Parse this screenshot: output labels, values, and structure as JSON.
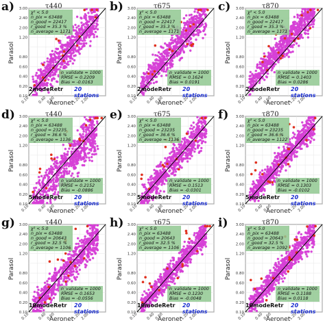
{
  "figure": {
    "ylabel": "Parasol",
    "xlabel": "Aeronet",
    "ticks": [
      "0.10",
      "0.20",
      "0.40",
      "0.60",
      "0.80",
      "1.00",
      "1.20",
      "2.00",
      "2.40",
      "3.00"
    ],
    "y_ticks_shown": [
      "3.00",
      "2.40",
      "2.00",
      "1.20",
      "0.80",
      "0.60",
      "0.40",
      "0.20",
      "0.10"
    ],
    "x_ticks_shown": [
      "0.10",
      "0.40",
      "0.60",
      "1.20",
      "2.00"
    ],
    "stats_labels": {
      "chi": "χ² < 5.0",
      "npix": "n_pix =",
      "ngood": "n_good =",
      "pgood": "r_good =",
      "nev": "n_average ="
    },
    "err_labels": {
      "nval": "n_validate =",
      "rmse": "RMSE =",
      "bias": "Bias ="
    }
  },
  "panels": [
    {
      "letter": "a)",
      "title": "τ440",
      "model": "2modeRetr",
      "stations": "20 stations",
      "npix": "63488",
      "ngood": "22417",
      "pgood": "35.3 %",
      "nev": "1171",
      "nval": "1000",
      "rmse": "0.2209",
      "bias": "-0.0163"
    },
    {
      "letter": "b)",
      "title": "τ675",
      "model": "2modeRetr",
      "stations": "20 stations",
      "npix": "63488",
      "ngood": "22417",
      "pgood": "35.3 %",
      "nev": "1171",
      "nval": "1000",
      "rmse": "0.1624",
      "bias": "0.0191"
    },
    {
      "letter": "c)",
      "title": "τ870",
      "model": "2modeRetr",
      "stations": "20 stations",
      "npix": "63488",
      "ngood": "22417",
      "pgood": "35.3 %",
      "nev": "1171",
      "nval": "1000",
      "rmse": "0.1403",
      "bias": "0.0286"
    },
    {
      "letter": "d)",
      "title": "τ440",
      "model": "5modeRetr",
      "stations": "20 stations",
      "npix": "63488",
      "ngood": "23235",
      "pgood": "36.6 %",
      "nev": "1136",
      "nval": "1000",
      "rmse": "0.2152",
      "bias": "-0.0886"
    },
    {
      "letter": "e)",
      "title": "τ675",
      "model": "5modeRetr",
      "stations": "20 stations",
      "npix": "63488",
      "ngood": "23235",
      "pgood": "36.6 %",
      "nev": "1136",
      "nval": "1000",
      "rmse": "0.1513",
      "bias": "-0.0301"
    },
    {
      "letter": "f)",
      "title": "τ870",
      "model": "5modeRetr",
      "stations": "20 stations",
      "npix": "63488",
      "ngood": "23235",
      "pgood": "36.6 %",
      "nev": "1122",
      "nval": "1000",
      "rmse": "0.1303",
      "bias": "-0.0102"
    },
    {
      "letter": "g)",
      "title": "τ440",
      "model": "10modeRetr",
      "stations": "20 stations",
      "npix": "63488",
      "ngood": "20643",
      "pgood": "32.5 %",
      "nev": "1106",
      "nval": "1000",
      "rmse": "0.1653",
      "bias": "-0.0556"
    },
    {
      "letter": "h)",
      "title": "τ675",
      "model": "10modeRetr",
      "stations": "20 stations",
      "npix": "63488",
      "ngood": "20643",
      "pgood": "32.5 %",
      "nev": "1106",
      "nval": "1000",
      "rmse": "0.1230",
      "bias": "-0.0048"
    },
    {
      "letter": "i)",
      "title": "τ870",
      "model": "10modeRetr",
      "stations": "20 stations",
      "npix": "63488",
      "ngood": "20643",
      "pgood": "32.5 %",
      "nev": "1092",
      "nval": "1000",
      "rmse": "0.1188",
      "bias": "0.0118"
    }
  ],
  "chart_data": {
    "type": "scatter",
    "panels": 9,
    "xlabel": "Aeronet",
    "ylabel": "Parasol",
    "xlim": [
      0.1,
      3.0
    ],
    "ylim": [
      0.1,
      3.0
    ],
    "grid": true,
    "reference_line": "1:1",
    "colors": {
      "points": "#d63fd6",
      "outliers": "#e0301e",
      "line": "#000000",
      "grid": "#e6e6e6"
    }
  }
}
